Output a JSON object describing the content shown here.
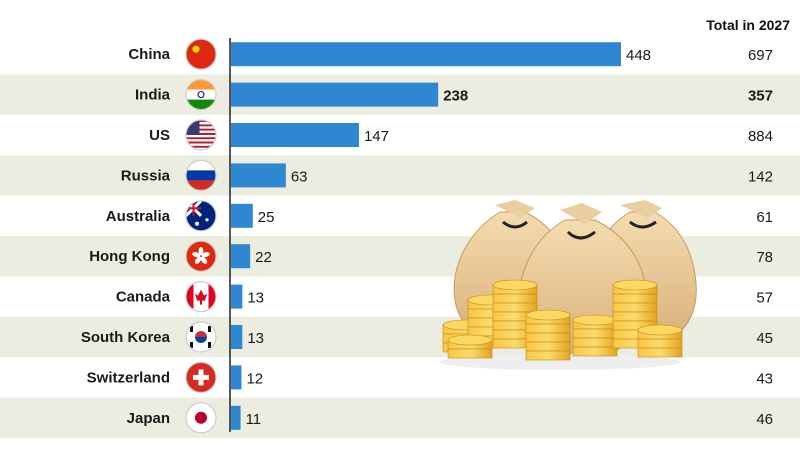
{
  "chart_data": {
    "type": "bar",
    "orientation": "horizontal",
    "categories": [
      "China",
      "India",
      "US",
      "Russia",
      "Australia",
      "Hong Kong",
      "Canada",
      "South Korea",
      "Switzerland",
      "Japan"
    ],
    "values": [
      448,
      238,
      147,
      63,
      25,
      22,
      13,
      13,
      12,
      11
    ],
    "totals_header": "Total in 2027",
    "totals": [
      697,
      357,
      884,
      142,
      61,
      78,
      57,
      45,
      43,
      46
    ],
    "highlight": "India",
    "xlim": [
      0,
      500
    ],
    "grid": false,
    "bar_color": "#2f86d1",
    "band_color": "#ecede1"
  },
  "flags": [
    "china-flag-icon",
    "india-flag-icon",
    "us-flag-icon",
    "russia-flag-icon",
    "australia-flag-icon",
    "hongkong-flag-icon",
    "canada-flag-icon",
    "southkorea-flag-icon",
    "switzerland-flag-icon",
    "japan-flag-icon"
  ],
  "decoration": "money-bags-and-coins-icon"
}
